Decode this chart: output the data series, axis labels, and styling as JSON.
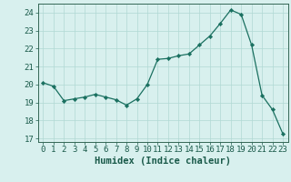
{
  "x": [
    0,
    1,
    2,
    3,
    4,
    5,
    6,
    7,
    8,
    9,
    10,
    11,
    12,
    13,
    14,
    15,
    16,
    17,
    18,
    19,
    20,
    21,
    22,
    23
  ],
  "y": [
    20.1,
    19.9,
    19.1,
    19.2,
    19.3,
    19.45,
    19.3,
    19.15,
    18.85,
    19.2,
    20.0,
    21.4,
    21.45,
    21.6,
    21.7,
    22.2,
    22.7,
    23.4,
    24.15,
    23.9,
    22.2,
    19.4,
    18.6,
    17.25
  ],
  "xlim": [
    -0.5,
    23.5
  ],
  "ylim": [
    16.8,
    24.5
  ],
  "yticks": [
    17,
    18,
    19,
    20,
    21,
    22,
    23,
    24
  ],
  "xticks": [
    0,
    1,
    2,
    3,
    4,
    5,
    6,
    7,
    8,
    9,
    10,
    11,
    12,
    13,
    14,
    15,
    16,
    17,
    18,
    19,
    20,
    21,
    22,
    23
  ],
  "xlabel": "Humidex (Indice chaleur)",
  "line_color": "#1a7060",
  "marker_color": "#1a7060",
  "bg_color": "#d8f0ee",
  "grid_color": "#b0d8d4",
  "axis_color": "#336655",
  "tick_color": "#1a5a4a",
  "xlabel_fontsize": 7.5,
  "tick_fontsize": 6.5
}
